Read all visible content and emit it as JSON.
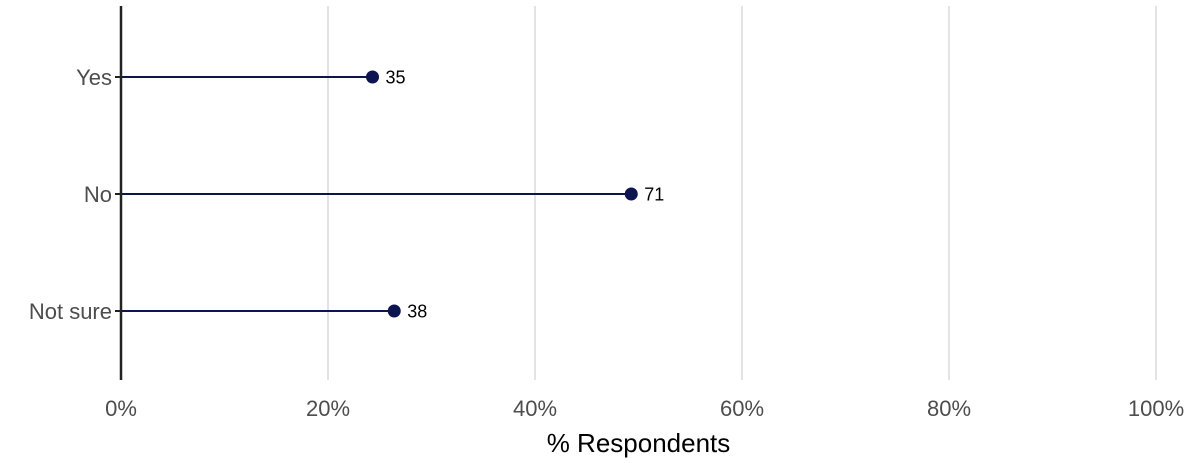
{
  "chart_data": {
    "type": "lollipop",
    "categories": [
      "Yes",
      "No",
      "Not sure"
    ],
    "values": [
      24.3,
      49.3,
      26.4
    ],
    "data_labels": [
      "35",
      "71",
      "38"
    ],
    "xlabel": "% Respondents",
    "xlim": [
      0,
      100
    ],
    "x_ticks": [
      0,
      20,
      40,
      60,
      80,
      100
    ],
    "x_tick_labels": [
      "0%",
      "20%",
      "40%",
      "60%",
      "80%",
      "100%"
    ],
    "grid": "vertical",
    "color": "#0d1550"
  }
}
